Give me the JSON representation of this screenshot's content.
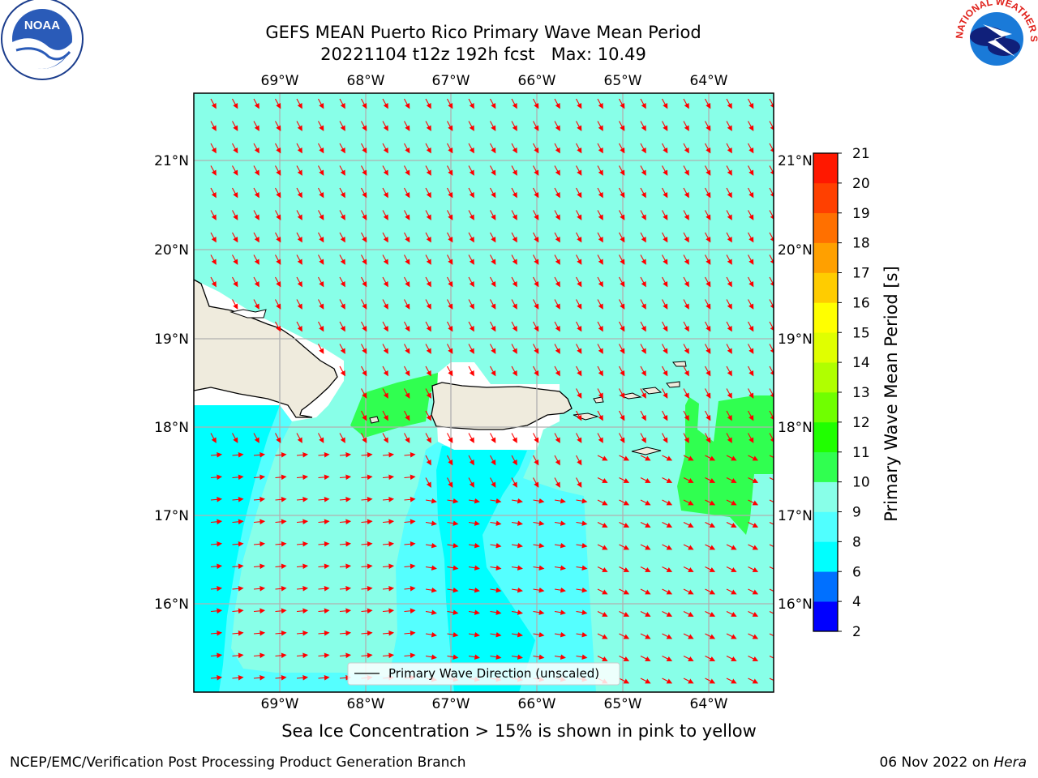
{
  "title": {
    "line1": "GEFS MEAN Puerto Rico Primary Wave Mean Period",
    "line2": "20221104 t12z 192h fcst   Max: 10.49"
  },
  "map": {
    "lon_labels": [
      "69°W",
      "68°W",
      "67°W",
      "66°W",
      "65°W",
      "64°W"
    ],
    "lat_labels": [
      "21°N",
      "20°N",
      "19°N",
      "18°N",
      "17°N",
      "16°N"
    ],
    "legend": "Primary Wave Direction (unscaled)",
    "arrow_color": "#ff0000",
    "land_color": "#efebdd",
    "sea_color": "#88ffe8"
  },
  "colorbar": {
    "label": "Primary Wave Mean Period [s]",
    "ticks": [
      "2",
      "4",
      "6",
      "8",
      "9",
      "10",
      "11",
      "12",
      "13",
      "14",
      "15",
      "16",
      "17",
      "18",
      "19",
      "20",
      "21"
    ],
    "colors": [
      "#0000ff",
      "#0070ff",
      "#00ffff",
      "#50ffff",
      "#88ffe8",
      "#30ff50",
      "#20ff00",
      "#70ff00",
      "#b0ff00",
      "#e0ff00",
      "#ffff00",
      "#ffcc00",
      "#ffa000",
      "#ff7000",
      "#ff4000",
      "#ff1800"
    ]
  },
  "note": "Sea Ice Concentration > 15% is shown in pink to yellow",
  "credit": {
    "left": "NCEP/EMC/Verification Post Processing Product Generation Branch",
    "date": "06 Nov 2022 on",
    "machine": "Hera"
  },
  "logos": {
    "noaa": "NOAA",
    "nws": "NATIONAL WEATHER SERVICE"
  }
}
